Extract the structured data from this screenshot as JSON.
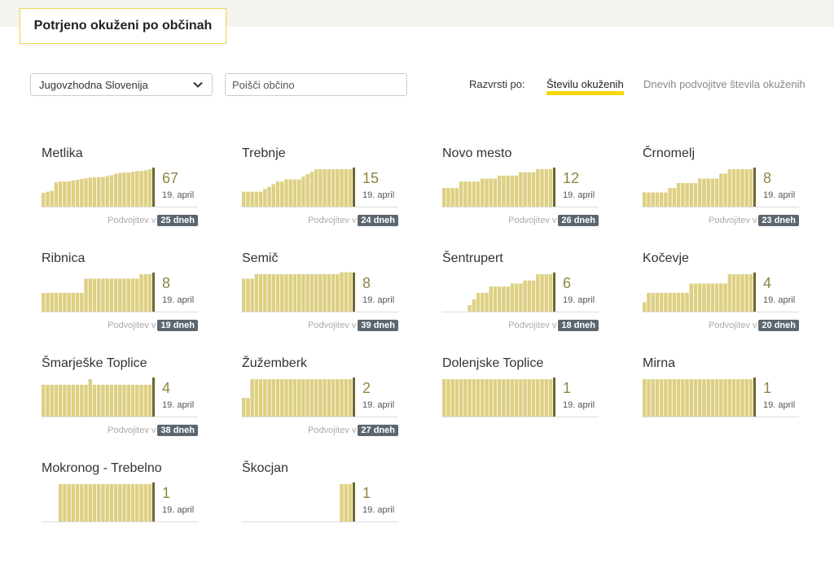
{
  "header": {
    "title": "Potrjeno okuženi po občinah"
  },
  "filters": {
    "region_value": "Jugovzhodna Slovenija",
    "search_placeholder": "Poišči občino",
    "sort_label": "Razvrsti po:",
    "sort_options": [
      "Številu okuženih",
      "Dnevih podvojitve števila okuženih"
    ],
    "sort_selected": "Številu okuženih"
  },
  "colors": {
    "bar": "#ddd083",
    "bar_last": "#6e662d",
    "accent": "#f5d90a",
    "badge": "#5b6670"
  },
  "doubling_prefix": "Podvojitev v",
  "municipalities": [
    {
      "name": "Metlika",
      "count": "67",
      "date": "19. april",
      "doubling": "25 dneh",
      "bars": [
        0.37,
        0.4,
        0.42,
        0.65,
        0.67,
        0.67,
        0.68,
        0.7,
        0.72,
        0.74,
        0.76,
        0.78,
        0.78,
        0.79,
        0.79,
        0.82,
        0.84,
        0.88,
        0.9,
        0.91,
        0.91,
        0.93,
        0.95,
        0.95,
        0.97,
        1.0
      ]
    },
    {
      "name": "Trebnje",
      "count": "15",
      "date": "19. april",
      "doubling": "24 dneh",
      "bars": [
        0.4,
        0.4,
        0.4,
        0.4,
        0.4,
        0.47,
        0.53,
        0.6,
        0.67,
        0.67,
        0.73,
        0.73,
        0.73,
        0.73,
        0.8,
        0.87,
        0.93,
        1.0,
        1.0,
        1.0,
        1.0,
        1.0,
        1.0,
        1.0,
        1.0,
        1.0
      ]
    },
    {
      "name": "Novo mesto",
      "count": "12",
      "date": "19. april",
      "doubling": "26 dneh",
      "bars": [
        0.5,
        0.5,
        0.5,
        0.5,
        0.67,
        0.67,
        0.67,
        0.67,
        0.67,
        0.75,
        0.75,
        0.75,
        0.75,
        0.83,
        0.83,
        0.83,
        0.83,
        0.83,
        0.92,
        0.92,
        0.92,
        0.92,
        1.0,
        1.0,
        1.0,
        1.0
      ]
    },
    {
      "name": "Črnomelj",
      "count": "8",
      "date": "19. april",
      "doubling": "23 dneh",
      "bars": [
        0.38,
        0.38,
        0.38,
        0.38,
        0.38,
        0.38,
        0.5,
        0.5,
        0.63,
        0.63,
        0.63,
        0.63,
        0.63,
        0.75,
        0.75,
        0.75,
        0.75,
        0.75,
        0.88,
        0.88,
        1.0,
        1.0,
        1.0,
        1.0,
        1.0,
        1.0
      ]
    },
    {
      "name": "Ribnica",
      "count": "8",
      "date": "19. april",
      "doubling": "19 dneh",
      "bars": [
        0.5,
        0.5,
        0.5,
        0.5,
        0.5,
        0.5,
        0.5,
        0.5,
        0.5,
        0.5,
        0.88,
        0.88,
        0.88,
        0.88,
        0.88,
        0.88,
        0.88,
        0.88,
        0.88,
        0.88,
        0.88,
        0.88,
        0.88,
        1.0,
        1.0,
        1.0
      ]
    },
    {
      "name": "Semič",
      "count": "8",
      "date": "19. april",
      "doubling": "39 dneh",
      "bars": [
        0.88,
        0.88,
        0.88,
        1.0,
        1.0,
        1.0,
        1.0,
        1.0,
        1.0,
        1.0,
        1.0,
        1.0,
        1.0,
        1.0,
        1.0,
        1.0,
        1.0,
        1.0,
        1.0,
        1.0,
        1.0,
        1.0,
        1.0,
        1.05,
        1.05,
        1.05
      ]
    },
    {
      "name": "Šentrupert",
      "count": "6",
      "date": "19. april",
      "doubling": "18 dneh",
      "bars": [
        0,
        0,
        0,
        0,
        0,
        0,
        0.17,
        0.33,
        0.5,
        0.5,
        0.5,
        0.67,
        0.67,
        0.67,
        0.67,
        0.67,
        0.75,
        0.75,
        0.75,
        0.83,
        0.83,
        0.83,
        1.0,
        1.0,
        1.0,
        1.0
      ]
    },
    {
      "name": "Kočevje",
      "count": "4",
      "date": "19. april",
      "doubling": "20 dneh",
      "bars": [
        0.25,
        0.5,
        0.5,
        0.5,
        0.5,
        0.5,
        0.5,
        0.5,
        0.5,
        0.5,
        0.5,
        0.75,
        0.75,
        0.75,
        0.75,
        0.75,
        0.75,
        0.75,
        0.75,
        0.75,
        1.0,
        1.0,
        1.0,
        1.0,
        1.0,
        1.0
      ]
    },
    {
      "name": "Šmarješke Toplice",
      "count": "4",
      "date": "19. april",
      "doubling": "38 dneh",
      "bars": [
        0.85,
        0.85,
        0.85,
        0.85,
        0.85,
        0.85,
        0.85,
        0.85,
        0.85,
        0.85,
        0.85,
        1.0,
        0.85,
        0.85,
        0.85,
        0.85,
        0.85,
        0.85,
        0.85,
        0.85,
        0.85,
        0.85,
        0.85,
        0.85,
        0.85,
        0.85
      ]
    },
    {
      "name": "Žužemberk",
      "count": "2",
      "date": "19. april",
      "doubling": "27 dneh",
      "bars": [
        0.5,
        0.5,
        1.0,
        1.0,
        1.0,
        1.0,
        1.0,
        1.0,
        1.0,
        1.0,
        1.0,
        1.0,
        1.0,
        1.0,
        1.0,
        1.0,
        1.0,
        1.0,
        1.0,
        1.0,
        1.0,
        1.0,
        1.0,
        1.0,
        1.0,
        1.0
      ]
    },
    {
      "name": "Dolenjske Toplice",
      "count": "1",
      "date": "19. april",
      "doubling": "",
      "bars": [
        1,
        1,
        1,
        1,
        1,
        1,
        1,
        1,
        1,
        1,
        1,
        1,
        1,
        1,
        1,
        1,
        1,
        1,
        1,
        1,
        1,
        1,
        1,
        1,
        1,
        1
      ]
    },
    {
      "name": "Mirna",
      "count": "1",
      "date": "19. april",
      "doubling": "",
      "bars": [
        1,
        1,
        1,
        1,
        1,
        1,
        1,
        1,
        1,
        1,
        1,
        1,
        1,
        1,
        1,
        1,
        1,
        1,
        1,
        1,
        1,
        1,
        1,
        1,
        1,
        1
      ]
    },
    {
      "name": "Mokronog - Trebelno",
      "count": "1",
      "date": "19. april",
      "doubling": "",
      "bars": [
        0,
        0,
        0,
        0,
        1,
        1,
        1,
        1,
        1,
        1,
        1,
        1,
        1,
        1,
        1,
        1,
        1,
        1,
        1,
        1,
        1,
        1,
        1,
        1,
        1,
        1
      ]
    },
    {
      "name": "Škocjan",
      "count": "1",
      "date": "19. april",
      "doubling": "",
      "bars": [
        0,
        0,
        0,
        0,
        0,
        0,
        0,
        0,
        0,
        0,
        0,
        0,
        0,
        0,
        0,
        0,
        0,
        0,
        0,
        0,
        0,
        0,
        0,
        1,
        1,
        1
      ]
    }
  ]
}
